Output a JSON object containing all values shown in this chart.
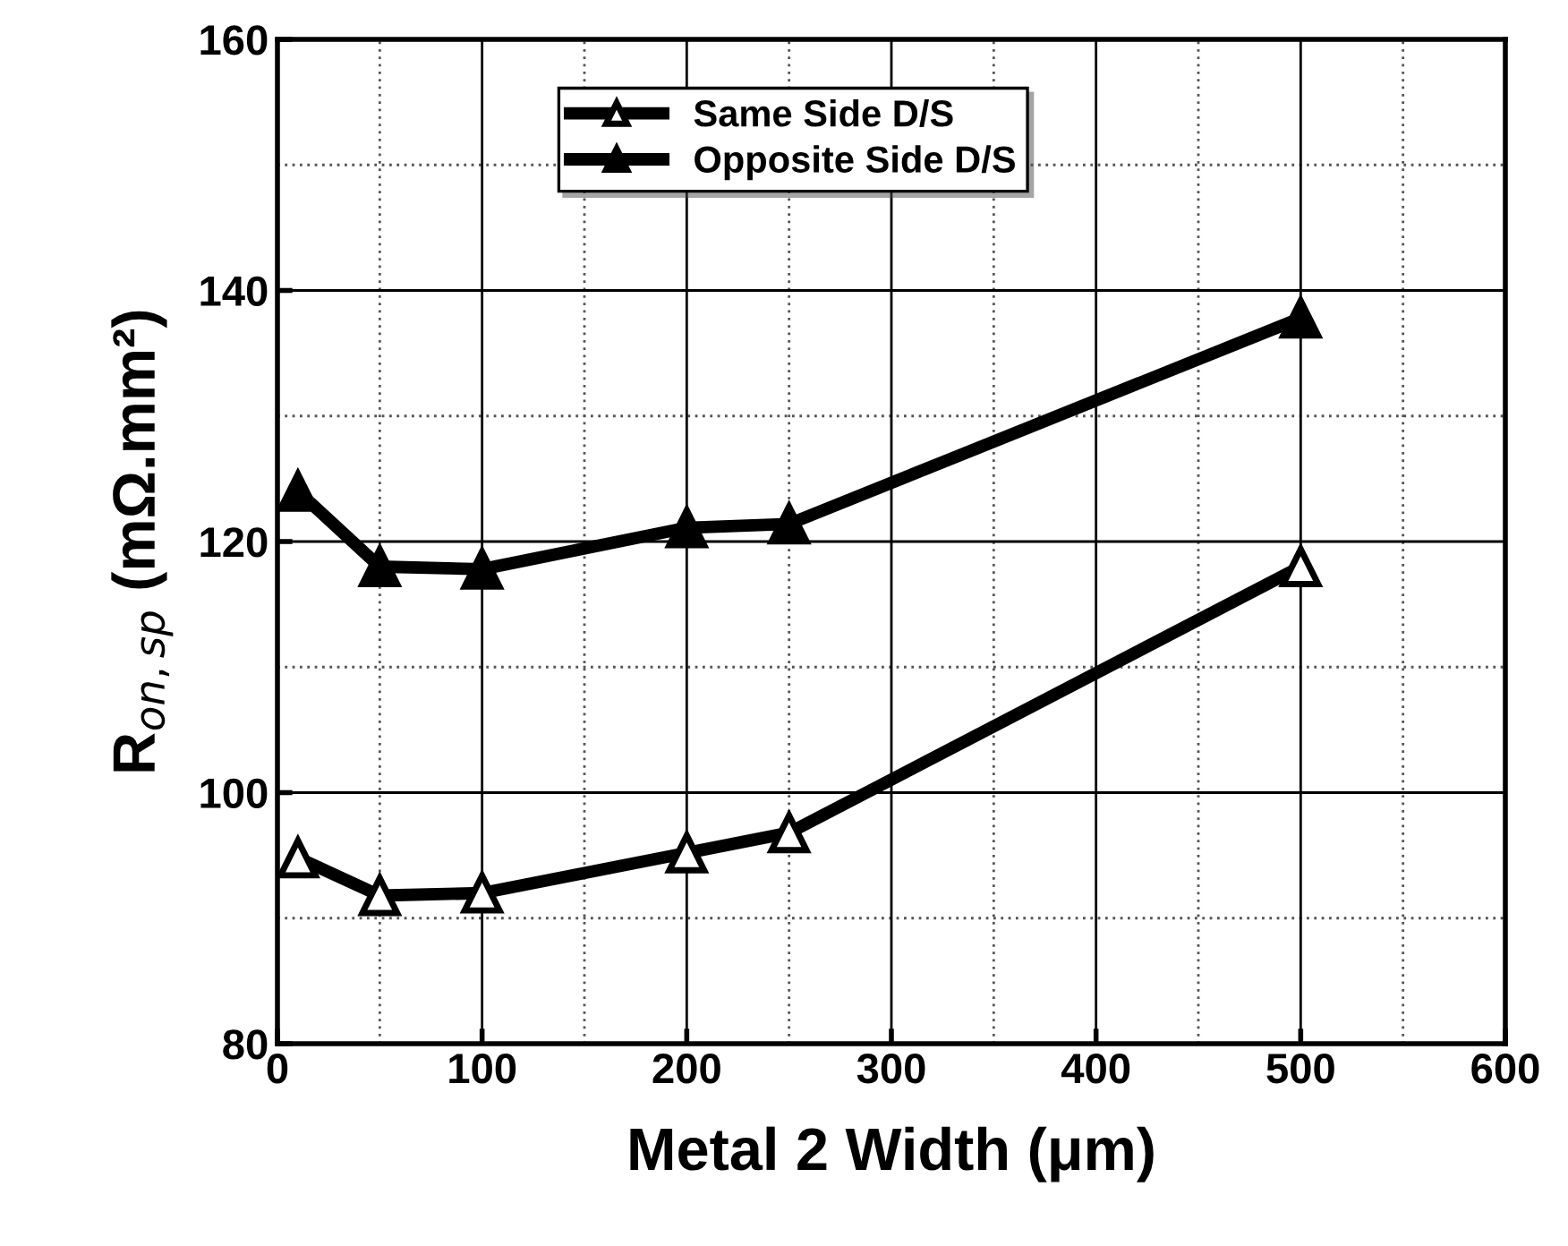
{
  "chart_data": {
    "type": "line",
    "xlabel": "Metal 2 Width (μm)",
    "ylabel": "R$_{on,sp}$ (mΩ.mm²)",
    "x": [
      10,
      50,
      100,
      200,
      250,
      500
    ],
    "series": [
      {
        "name": "Same Side D/S",
        "color": "#000000",
        "values": [
          94.8,
          91.8,
          92.0,
          95.2,
          96.8,
          118.0
        ]
      },
      {
        "name": "Opposite Side D/S",
        "color": "#000000",
        "values": [
          124.0,
          118.0,
          117.8,
          121.1,
          121.4,
          137.8
        ]
      }
    ],
    "xlim": [
      0,
      600
    ],
    "xticks": [
      0,
      100,
      200,
      300,
      400,
      500,
      600
    ],
    "ylim": [
      80,
      160
    ],
    "yticks": [
      80,
      100,
      120,
      140,
      160
    ],
    "grid": true,
    "legend": "top",
    "marker": "triangle",
    "line_style": "solid"
  }
}
